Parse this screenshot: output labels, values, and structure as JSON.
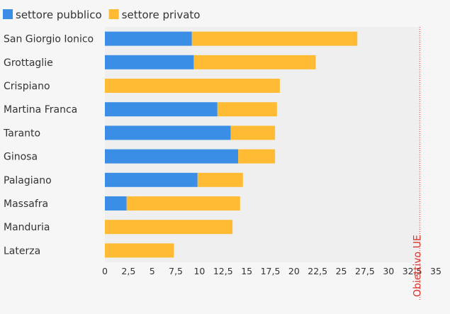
{
  "chart_data": {
    "type": "bar",
    "orientation": "horizontal",
    "stacked": true,
    "categories": [
      "San Giorgio Ionico",
      "Grottaglie",
      "Crispiano",
      "Martina Franca",
      "Taranto",
      "Ginosa",
      "Palagiano",
      "Massafra",
      "Manduria",
      "Laterza"
    ],
    "series": [
      {
        "name": "settore pubblico",
        "color": "#3a8ee6",
        "values": [
          9.2,
          9.4,
          0,
          11.9,
          13.3,
          14.1,
          9.8,
          2.3,
          0,
          0
        ]
      },
      {
        "name": "settore privato",
        "color": "#ffbb33",
        "values": [
          17.5,
          12.9,
          18.5,
          6.3,
          4.7,
          3.9,
          4.8,
          12.0,
          13.5,
          7.3
        ]
      }
    ],
    "xlim": [
      0,
      35
    ],
    "xticks": [
      "0",
      "2,5",
      "5",
      "7,5",
      "10",
      "12,5",
      "15",
      "17,5",
      "20",
      "22,5",
      "25",
      "27,5",
      "30",
      "32,5",
      "35"
    ],
    "legend_position": "top-left",
    "reference_line": {
      "value": 33.3,
      "label": "Obiettivo UE",
      "color": "#d9342b"
    },
    "grid": false
  }
}
